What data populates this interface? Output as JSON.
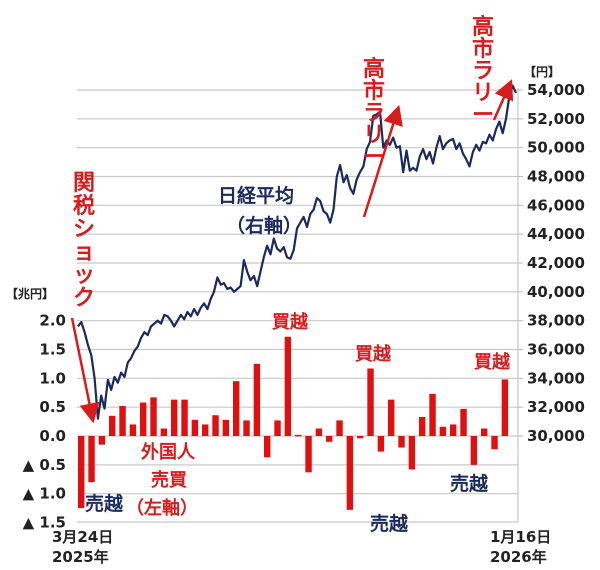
{
  "chart_data": {
    "type": "bar+line",
    "title": "",
    "x_start_label": "3月24日",
    "x_start_year": "2025年",
    "x_end_label": "1月16日",
    "x_end_year": "2026年",
    "left_axis": {
      "unit": "【兆円】",
      "ticks": [
        "2.0",
        "1.5",
        "1.0",
        "0.5",
        "0.0",
        "▲ 0.5",
        "▲ 1.0",
        "▲ 1.5"
      ],
      "values": [
        2.0,
        1.5,
        1.0,
        0.5,
        0.0,
        -0.5,
        -1.0,
        -1.5
      ],
      "ylim": [
        -1.5,
        2.0
      ]
    },
    "right_axis": {
      "unit": "【円】",
      "ticks": [
        "54,000",
        "52,000",
        "50,000",
        "48,000",
        "46,000",
        "44,000",
        "42,000",
        "40,000",
        "38,000",
        "36,000",
        "34,000",
        "32,000",
        "30,000"
      ],
      "values": [
        54000,
        52000,
        50000,
        48000,
        46000,
        44000,
        42000,
        40000,
        38000,
        36000,
        34000,
        32000,
        30000
      ],
      "ylim": [
        30000,
        54000
      ]
    },
    "series": [
      {
        "name": "外国人売買（左軸）",
        "type": "bar",
        "axis": "left",
        "color": "#e01010",
        "values": [
          -1.25,
          -0.8,
          -0.15,
          0.35,
          0.52,
          0.2,
          0.58,
          0.67,
          0.13,
          0.63,
          0.63,
          0.28,
          0.2,
          0.36,
          0.28,
          0.95,
          0.27,
          1.25,
          -0.37,
          0.27,
          1.72,
          0.02,
          -0.63,
          0.13,
          -0.1,
          0.27,
          -1.28,
          -0.04,
          1.17,
          -0.27,
          0.63,
          -0.2,
          -0.58,
          0.33,
          0.73,
          0.16,
          0.2,
          0.47,
          -0.5,
          0.13,
          -0.23,
          0.98
        ]
      },
      {
        "name": "日経平均（右軸）",
        "type": "line",
        "axis": "right",
        "color": "#1a2a5e",
        "values": [
          37600,
          37900,
          37200,
          36300,
          35600,
          34000,
          31200,
          32800,
          31900,
          33900,
          33200,
          34100,
          33700,
          34400,
          34100,
          35100,
          35400,
          35900,
          36200,
          36800,
          37200,
          37000,
          37600,
          37800,
          38000,
          37800,
          38400,
          38300,
          38000,
          37600,
          38000,
          38400,
          38100,
          38600,
          38300,
          38800,
          38400,
          38900,
          39200,
          38800,
          39500,
          40000,
          41000,
          40500,
          40600,
          40200,
          40300,
          40000,
          40200,
          40400,
          42200,
          41400,
          40800,
          41100,
          40400,
          41400,
          42400,
          43200,
          42600,
          43700,
          43000,
          42800,
          43100,
          42400,
          42300,
          42900,
          44400,
          44800,
          45200,
          44500,
          45400,
          45700,
          46500,
          46300,
          45600,
          45400,
          44800,
          45700,
          48000,
          48800,
          47600,
          48100,
          47200,
          46800,
          47800,
          48300,
          48700,
          49900,
          50400,
          52200,
          52300,
          52500,
          50000,
          50500,
          50200,
          50700,
          50000,
          50100,
          48300,
          49800,
          48400,
          48600,
          48400,
          49400,
          49900,
          49200,
          49700,
          48900,
          50000,
          50800,
          49900,
          50300,
          50500,
          50600,
          49900,
          50300,
          49600,
          49200,
          48700,
          49700,
          50200,
          49800,
          50400,
          50300,
          50900,
          50500,
          51300,
          51800,
          51000,
          52000,
          53600,
          54300,
          53800
        ]
      }
    ],
    "annotations": [
      {
        "text": "関税ショック",
        "color": "#d81b1b",
        "orientation": "vertical"
      },
      {
        "text": "高市ラリー",
        "color": "#d81b1b",
        "orientation": "vertical",
        "position": "mid-right"
      },
      {
        "text": "高市ラリー",
        "color": "#d81b1b",
        "orientation": "vertical",
        "position": "top-right"
      },
      {
        "text": "日経平均",
        "color": "#1a2a5e"
      },
      {
        "text": "（右軸）",
        "color": "#1a2a5e"
      },
      {
        "text": "外国人",
        "color": "#d81b1b"
      },
      {
        "text": "売買",
        "color": "#d81b1b"
      },
      {
        "text": "（左軸）",
        "color": "#d81b1b"
      },
      {
        "text": "買越",
        "color": "#d81b1b"
      },
      {
        "text": "買越",
        "color": "#d81b1b"
      },
      {
        "text": "買越",
        "color": "#d81b1b"
      },
      {
        "text": "売越",
        "color": "#1a2a5e"
      },
      {
        "text": "売越",
        "color": "#1a2a5e"
      },
      {
        "text": "売越",
        "color": "#1a2a5e"
      }
    ],
    "grid": true,
    "legend": "none"
  },
  "labels": {
    "tariff_shock": [
      "関",
      "税",
      "シ",
      "ョ",
      "ッ",
      "ク"
    ],
    "takaichi_rally": [
      "高",
      "市",
      "ラ",
      "リ",
      "ー"
    ],
    "nikkei": "日経平均",
    "nikkei_axis": "（右軸）",
    "foreign": "外国人",
    "trade": "売買",
    "left_axis_note": "（左軸）",
    "net_buy": "買越",
    "net_sell": "売越"
  }
}
